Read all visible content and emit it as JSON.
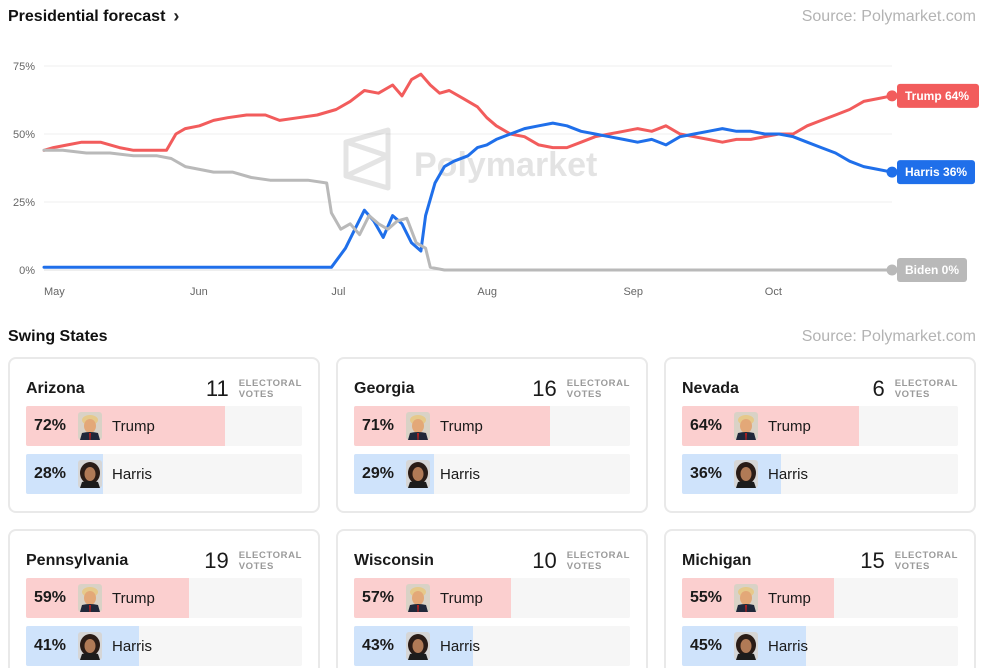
{
  "forecast": {
    "title": "Presidential forecast",
    "source": "Source: Polymarket.com",
    "watermark": "Polymarket"
  },
  "chart_data": {
    "type": "line",
    "title": "Presidential forecast",
    "x_range": [
      "2024-05-01",
      "2024-10-28"
    ],
    "x_ticks": [
      {
        "label": "May",
        "date": "2024-05-01"
      },
      {
        "label": "Jun",
        "date": "2024-06-01"
      },
      {
        "label": "Jul",
        "date": "2024-07-01"
      },
      {
        "label": "Aug",
        "date": "2024-08-01"
      },
      {
        "label": "Sep",
        "date": "2024-09-01"
      },
      {
        "label": "Oct",
        "date": "2024-10-01"
      }
    ],
    "y_ticks": [
      {
        "label": "0%",
        "value": 0
      },
      {
        "label": "25%",
        "value": 25
      },
      {
        "label": "50%",
        "value": 50
      },
      {
        "label": "75%",
        "value": 75
      }
    ],
    "ylim": [
      0,
      80
    ],
    "grid": true,
    "series": [
      {
        "name": "Trump",
        "end_label": "Trump 64%",
        "color": "#f25c5c",
        "points": [
          [
            "2024-05-01",
            44
          ],
          [
            "2024-05-03",
            45
          ],
          [
            "2024-05-06",
            46
          ],
          [
            "2024-05-09",
            47
          ],
          [
            "2024-05-13",
            47
          ],
          [
            "2024-05-17",
            45
          ],
          [
            "2024-05-20",
            44
          ],
          [
            "2024-05-24",
            44
          ],
          [
            "2024-05-27",
            44
          ],
          [
            "2024-05-29",
            50
          ],
          [
            "2024-05-31",
            52
          ],
          [
            "2024-06-03",
            53
          ],
          [
            "2024-06-06",
            55
          ],
          [
            "2024-06-09",
            56
          ],
          [
            "2024-06-13",
            57
          ],
          [
            "2024-06-17",
            57
          ],
          [
            "2024-06-20",
            55
          ],
          [
            "2024-06-24",
            56
          ],
          [
            "2024-06-28",
            57
          ],
          [
            "2024-07-02",
            59
          ],
          [
            "2024-07-05",
            62
          ],
          [
            "2024-07-08",
            66
          ],
          [
            "2024-07-11",
            65
          ],
          [
            "2024-07-14",
            68
          ],
          [
            "2024-07-16",
            64
          ],
          [
            "2024-07-18",
            70
          ],
          [
            "2024-07-20",
            72
          ],
          [
            "2024-07-22",
            68
          ],
          [
            "2024-07-24",
            65
          ],
          [
            "2024-07-26",
            66
          ],
          [
            "2024-07-29",
            63
          ],
          [
            "2024-08-01",
            60
          ],
          [
            "2024-08-03",
            56
          ],
          [
            "2024-08-05",
            53
          ],
          [
            "2024-08-08",
            50
          ],
          [
            "2024-08-11",
            49
          ],
          [
            "2024-08-14",
            46
          ],
          [
            "2024-08-17",
            45
          ],
          [
            "2024-08-20",
            45
          ],
          [
            "2024-08-23",
            47
          ],
          [
            "2024-08-26",
            49
          ],
          [
            "2024-08-29",
            50
          ],
          [
            "2024-09-01",
            51
          ],
          [
            "2024-09-04",
            52
          ],
          [
            "2024-09-07",
            51
          ],
          [
            "2024-09-10",
            53
          ],
          [
            "2024-09-13",
            50
          ],
          [
            "2024-09-16",
            49
          ],
          [
            "2024-09-19",
            48
          ],
          [
            "2024-09-22",
            47
          ],
          [
            "2024-09-25",
            48
          ],
          [
            "2024-09-28",
            48
          ],
          [
            "2024-10-01",
            49
          ],
          [
            "2024-10-04",
            50
          ],
          [
            "2024-10-07",
            50
          ],
          [
            "2024-10-10",
            53
          ],
          [
            "2024-10-13",
            55
          ],
          [
            "2024-10-16",
            57
          ],
          [
            "2024-10-19",
            59
          ],
          [
            "2024-10-22",
            62
          ],
          [
            "2024-10-25",
            63
          ],
          [
            "2024-10-28",
            64
          ]
        ]
      },
      {
        "name": "Harris",
        "end_label": "Harris 36%",
        "color": "#1f6fea",
        "points": [
          [
            "2024-05-01",
            1
          ],
          [
            "2024-05-15",
            1
          ],
          [
            "2024-06-01",
            1
          ],
          [
            "2024-06-15",
            1
          ],
          [
            "2024-06-25",
            1
          ],
          [
            "2024-07-01",
            1
          ],
          [
            "2024-07-04",
            8
          ],
          [
            "2024-07-06",
            15
          ],
          [
            "2024-07-08",
            22
          ],
          [
            "2024-07-10",
            18
          ],
          [
            "2024-07-12",
            12
          ],
          [
            "2024-07-14",
            20
          ],
          [
            "2024-07-16",
            17
          ],
          [
            "2024-07-18",
            10
          ],
          [
            "2024-07-20",
            7
          ],
          [
            "2024-07-21",
            20
          ],
          [
            "2024-07-23",
            32
          ],
          [
            "2024-07-25",
            38
          ],
          [
            "2024-07-27",
            40
          ],
          [
            "2024-07-30",
            42
          ],
          [
            "2024-08-01",
            45
          ],
          [
            "2024-08-03",
            46
          ],
          [
            "2024-08-05",
            48
          ],
          [
            "2024-08-08",
            50
          ],
          [
            "2024-08-11",
            52
          ],
          [
            "2024-08-14",
            53
          ],
          [
            "2024-08-17",
            54
          ],
          [
            "2024-08-20",
            53
          ],
          [
            "2024-08-23",
            51
          ],
          [
            "2024-08-26",
            50
          ],
          [
            "2024-08-29",
            49
          ],
          [
            "2024-09-01",
            48
          ],
          [
            "2024-09-04",
            47
          ],
          [
            "2024-09-07",
            48
          ],
          [
            "2024-09-10",
            46
          ],
          [
            "2024-09-13",
            49
          ],
          [
            "2024-09-16",
            50
          ],
          [
            "2024-09-19",
            51
          ],
          [
            "2024-09-22",
            52
          ],
          [
            "2024-09-25",
            51
          ],
          [
            "2024-09-28",
            51
          ],
          [
            "2024-10-01",
            50
          ],
          [
            "2024-10-04",
            50
          ],
          [
            "2024-10-07",
            49
          ],
          [
            "2024-10-10",
            47
          ],
          [
            "2024-10-13",
            45
          ],
          [
            "2024-10-16",
            43
          ],
          [
            "2024-10-19",
            40
          ],
          [
            "2024-10-22",
            38
          ],
          [
            "2024-10-25",
            37
          ],
          [
            "2024-10-28",
            36
          ]
        ]
      },
      {
        "name": "Biden",
        "end_label": "Biden 0%",
        "color": "#b9b9b9",
        "points": [
          [
            "2024-05-01",
            44
          ],
          [
            "2024-05-05",
            44
          ],
          [
            "2024-05-10",
            43
          ],
          [
            "2024-05-15",
            43
          ],
          [
            "2024-05-20",
            42
          ],
          [
            "2024-05-25",
            42
          ],
          [
            "2024-05-28",
            41
          ],
          [
            "2024-05-31",
            38
          ],
          [
            "2024-06-03",
            37
          ],
          [
            "2024-06-06",
            36
          ],
          [
            "2024-06-10",
            36
          ],
          [
            "2024-06-14",
            34
          ],
          [
            "2024-06-18",
            33
          ],
          [
            "2024-06-22",
            33
          ],
          [
            "2024-06-26",
            33
          ],
          [
            "2024-06-30",
            32
          ],
          [
            "2024-07-01",
            21
          ],
          [
            "2024-07-03",
            15
          ],
          [
            "2024-07-05",
            17
          ],
          [
            "2024-07-07",
            13
          ],
          [
            "2024-07-09",
            20
          ],
          [
            "2024-07-11",
            17
          ],
          [
            "2024-07-13",
            15
          ],
          [
            "2024-07-15",
            18
          ],
          [
            "2024-07-17",
            19
          ],
          [
            "2024-07-19",
            10
          ],
          [
            "2024-07-21",
            8
          ],
          [
            "2024-07-22",
            1
          ],
          [
            "2024-07-25",
            0
          ],
          [
            "2024-08-01",
            0
          ],
          [
            "2024-09-01",
            0
          ],
          [
            "2024-10-01",
            0
          ],
          [
            "2024-10-28",
            0
          ]
        ]
      }
    ]
  },
  "swing": {
    "title": "Swing States",
    "source": "Source: Polymarket.com",
    "ev_line1": "ELECTORAL",
    "ev_line2": "VOTES",
    "trump_name": "Trump",
    "harris_name": "Harris",
    "states": [
      {
        "name": "Arizona",
        "ev": "11",
        "trump_pct": "72%",
        "harris_pct": "28%",
        "trump_value": 72,
        "harris_value": 28
      },
      {
        "name": "Georgia",
        "ev": "16",
        "trump_pct": "71%",
        "harris_pct": "29%",
        "trump_value": 71,
        "harris_value": 29
      },
      {
        "name": "Nevada",
        "ev": "6",
        "trump_pct": "64%",
        "harris_pct": "36%",
        "trump_value": 64,
        "harris_value": 36
      },
      {
        "name": "Pennsylvania",
        "ev": "19",
        "trump_pct": "59%",
        "harris_pct": "41%",
        "trump_value": 59,
        "harris_value": 41
      },
      {
        "name": "Wisconsin",
        "ev": "10",
        "trump_pct": "57%",
        "harris_pct": "43%",
        "trump_value": 57,
        "harris_value": 43
      },
      {
        "name": "Michigan",
        "ev": "15",
        "trump_pct": "55%",
        "harris_pct": "45%",
        "trump_value": 55,
        "harris_value": 45
      }
    ]
  }
}
